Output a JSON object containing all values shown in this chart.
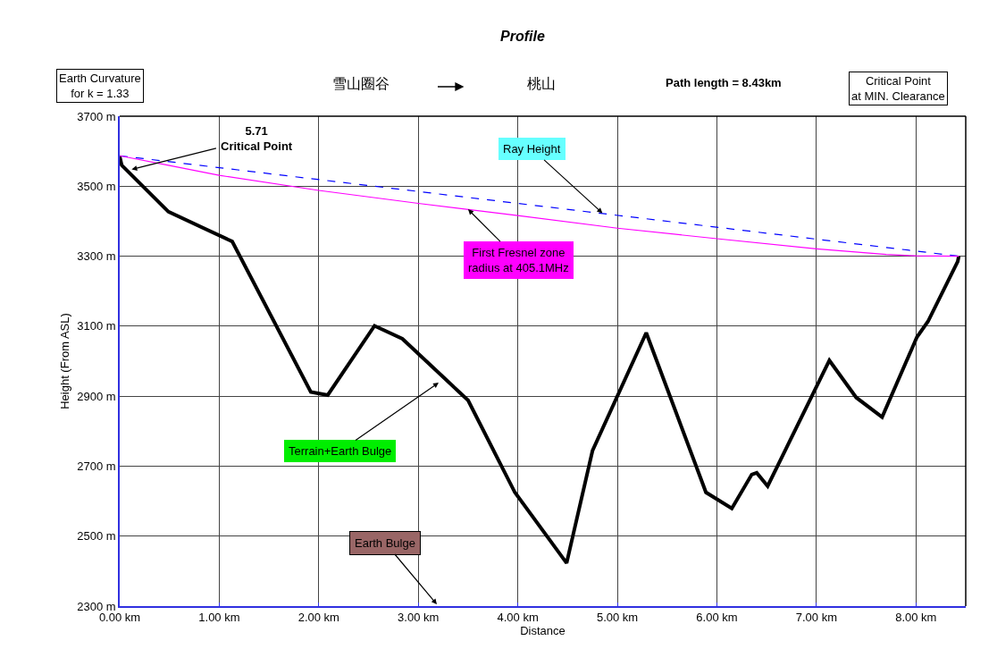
{
  "chart_data": {
    "type": "line",
    "title": "Profile",
    "xlabel": "Distance",
    "ylabel": "Height (From ASL)",
    "xlim": [
      0,
      8.5
    ],
    "ylim": [
      2300,
      3700
    ],
    "xticks": [
      {
        "value": 0,
        "label": "0.00 km"
      },
      {
        "value": 1,
        "label": "1.00 km"
      },
      {
        "value": 2,
        "label": "2.00 km"
      },
      {
        "value": 3,
        "label": "3.00 km"
      },
      {
        "value": 4,
        "label": "4.00 km"
      },
      {
        "value": 5,
        "label": "5.00 km"
      },
      {
        "value": 6,
        "label": "6.00 km"
      },
      {
        "value": 7,
        "label": "7.00 km"
      },
      {
        "value": 8,
        "label": "8.00 km"
      }
    ],
    "yticks": [
      {
        "value": 2300,
        "label": "2300 m"
      },
      {
        "value": 2500,
        "label": "2500 m"
      },
      {
        "value": 2700,
        "label": "2700 m"
      },
      {
        "value": 2900,
        "label": "2900 m"
      },
      {
        "value": 3100,
        "label": "3100 m"
      },
      {
        "value": 3300,
        "label": "3300 m"
      },
      {
        "value": 3500,
        "label": "3500 m"
      },
      {
        "value": 3700,
        "label": "3700 m"
      }
    ],
    "grid": true,
    "marker": "none",
    "series": [
      {
        "color": "#000000",
        "line_style": "solid",
        "x": [
          0,
          0.02,
          0.49,
          1.13,
          1.92,
          2.09,
          2.56,
          2.84,
          3.5,
          3.97,
          4.49,
          4.75,
          5.29,
          5.89,
          6.15,
          6.35,
          6.4,
          6.51,
          7.13,
          7.4,
          7.66,
          8.01,
          8.12,
          8.42,
          8.43
        ],
        "values": [
          3585,
          3560,
          3427,
          3342,
          2912,
          2903,
          3101,
          3064,
          2888,
          2625,
          2423,
          2744,
          3081,
          2625,
          2579,
          2676,
          2681,
          2643,
          3002,
          2896,
          2840,
          3069,
          3113,
          3285,
          3300
        ]
      },
      {
        "color": "#0000ff",
        "line_style": "dashed",
        "x": [
          0,
          8.43
        ],
        "values": [
          3587,
          3300
        ]
      },
      {
        "color": "#ff00ff",
        "line_style": "solid",
        "x": [
          0,
          0.5,
          1,
          2,
          3,
          4,
          5,
          6,
          7,
          7.7,
          8,
          8.43
        ],
        "values": [
          3587,
          3559,
          3531,
          3488,
          3451,
          3416,
          3380,
          3350,
          3321,
          3305,
          3301,
          3300
        ]
      }
    ],
    "annotations": [
      "Earth Curvature\nfor k = 1.33",
      "雪山圈谷",
      "桃山",
      "Path length = 8.43km",
      "Critical Point\nat MIN. Clearance",
      {
        "text": "5.71\nCritical Point",
        "x": 0.12,
        "y": 3548
      },
      {
        "text": "Ray Height",
        "x": 4.85,
        "y": 3423
      },
      {
        "text": "First Fresnel zone\nradius at 405.1MHz",
        "x": 3.5,
        "y": 3434
      },
      "Terrain+Earth Bulge",
      "Earth Bulge"
    ]
  }
}
